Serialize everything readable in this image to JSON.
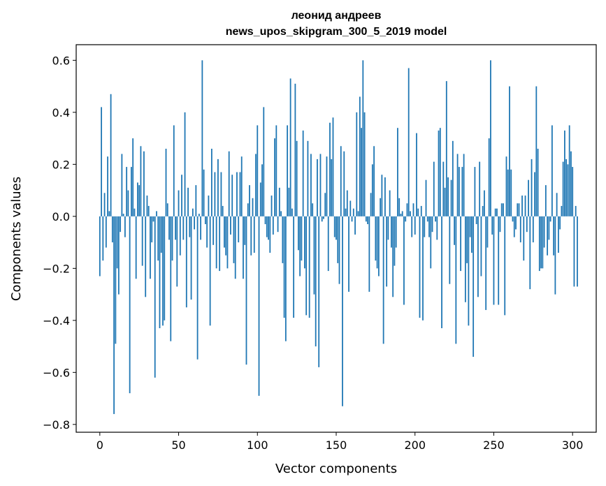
{
  "chart_data": {
    "type": "bar",
    "title": "леонид андреев",
    "subtitle": "news_upos_skipgram_300_5_2019 model",
    "xlabel": "Vector components",
    "ylabel": "Components values",
    "xlim": [
      -15,
      315
    ],
    "ylim": [
      -0.83,
      0.66
    ],
    "xticks": [
      0,
      50,
      100,
      150,
      200,
      250,
      300
    ],
    "xtick_labels": [
      "0",
      "50",
      "100",
      "150",
      "200",
      "250",
      "300"
    ],
    "yticks": [
      -0.8,
      -0.6,
      -0.4,
      -0.2,
      0.0,
      0.2,
      0.4,
      0.6
    ],
    "ytick_labels": [
      "−0.8",
      "−0.6",
      "−0.4",
      "−0.2",
      "0.0",
      "0.2",
      "0.4",
      "0.6"
    ],
    "grid": false,
    "bar_color": "#1f77b4",
    "x_start": 0,
    "values": [
      -0.23,
      0.42,
      -0.17,
      0.09,
      -0.12,
      0.23,
      0.02,
      0.47,
      -0.1,
      -0.76,
      -0.49,
      -0.2,
      -0.3,
      -0.06,
      0.24,
      0.01,
      -0.08,
      0.19,
      0.1,
      -0.68,
      0.19,
      0.3,
      0.03,
      -0.24,
      0.13,
      0.12,
      0.27,
      -0.19,
      0.25,
      -0.31,
      0.08,
      0.04,
      -0.24,
      -0.1,
      -0.02,
      -0.62,
      0.02,
      -0.17,
      -0.43,
      -0.14,
      -0.42,
      -0.4,
      0.26,
      0.05,
      -0.09,
      -0.48,
      -0.17,
      0.35,
      -0.09,
      -0.27,
      0.1,
      -0.15,
      0.16,
      -0.09,
      0.4,
      -0.35,
      0.11,
      -0.08,
      -0.32,
      0.03,
      -0.05,
      0.12,
      -0.55,
      0.01,
      -0.09,
      0.6,
      0.18,
      -0.03,
      -0.12,
      0.08,
      -0.42,
      0.26,
      -0.11,
      0.17,
      -0.2,
      0.22,
      -0.21,
      0.17,
      0.04,
      -0.12,
      -0.15,
      -0.2,
      0.25,
      -0.07,
      0.16,
      -0.18,
      -0.24,
      0.17,
      -0.1,
      0.17,
      0.23,
      -0.24,
      -0.11,
      -0.57,
      0.05,
      0.12,
      -0.15,
      0.07,
      -0.14,
      0.24,
      0.35,
      -0.69,
      0.13,
      0.2,
      0.42,
      -0.03,
      -0.08,
      -0.09,
      -0.14,
      0.08,
      -0.07,
      0.3,
      0.35,
      -0.06,
      0.11,
      0.02,
      -0.18,
      -0.39,
      -0.48,
      0.35,
      0.11,
      0.53,
      0.03,
      -0.39,
      0.51,
      0.29,
      -0.13,
      -0.23,
      -0.17,
      0.33,
      -0.2,
      -0.38,
      0.29,
      -0.39,
      0.24,
      0.05,
      -0.3,
      -0.5,
      0.22,
      -0.58,
      0.24,
      -0.02,
      -0.01,
      0.09,
      0.23,
      -0.21,
      0.36,
      0.22,
      0.38,
      -0.08,
      -0.09,
      -0.18,
      -0.26,
      0.27,
      -0.73,
      0.25,
      0.03,
      0.1,
      -0.29,
      0.06,
      -0.02,
      0.03,
      -0.07,
      0.4,
      0.02,
      0.46,
      0.34,
      0.6,
      0.4,
      -0.02,
      -0.03,
      -0.29,
      0.09,
      0.2,
      0.27,
      -0.17,
      -0.2,
      -0.23,
      0.07,
      0.16,
      -0.49,
      0.15,
      -0.27,
      -0.09,
      0.1,
      -0.12,
      -0.31,
      -0.19,
      -0.12,
      0.34,
      0.07,
      0.01,
      0.02,
      -0.34,
      -0.02,
      0.05,
      0.57,
      0.02,
      -0.08,
      0.05,
      -0.07,
      0.32,
      0.03,
      -0.39,
      0.04,
      -0.4,
      -0.08,
      0.14,
      -0.02,
      -0.08,
      -0.2,
      -0.06,
      0.21,
      -0.02,
      -0.09,
      0.33,
      0.34,
      -0.43,
      0.21,
      0.11,
      0.52,
      0.15,
      -0.26,
      0.14,
      0.29,
      -0.11,
      -0.49,
      0.24,
      0.19,
      -0.21,
      0.19,
      0.24,
      -0.33,
      -0.18,
      -0.42,
      -0.08,
      -0.14,
      -0.54,
      0.19,
      -0.03,
      -0.31,
      0.21,
      -0.23,
      0.04,
      0.1,
      -0.36,
      -0.12,
      0.3,
      0.6,
      -0.07,
      -0.34,
      0.03,
      0.03,
      -0.34,
      -0.06,
      0.05,
      0.05,
      -0.38,
      0.23,
      0.18,
      0.5,
      0.18,
      -0.02,
      -0.08,
      -0.05,
      0.05,
      0.05,
      -0.1,
      0.08,
      -0.17,
      0.08,
      -0.06,
      0.14,
      -0.28,
      0.22,
      -0.1,
      0.17,
      0.5,
      0.26,
      -0.21,
      -0.2,
      -0.2,
      -0.12,
      0.12,
      -0.15,
      -0.09,
      -0.02,
      0.35,
      -0.15,
      -0.3,
      0.09,
      -0.14,
      -0.05,
      0.04,
      0.21,
      0.33,
      0.22,
      0.2,
      0.35,
      0.25,
      0.19,
      -0.27,
      0.04,
      -0.27
    ]
  }
}
